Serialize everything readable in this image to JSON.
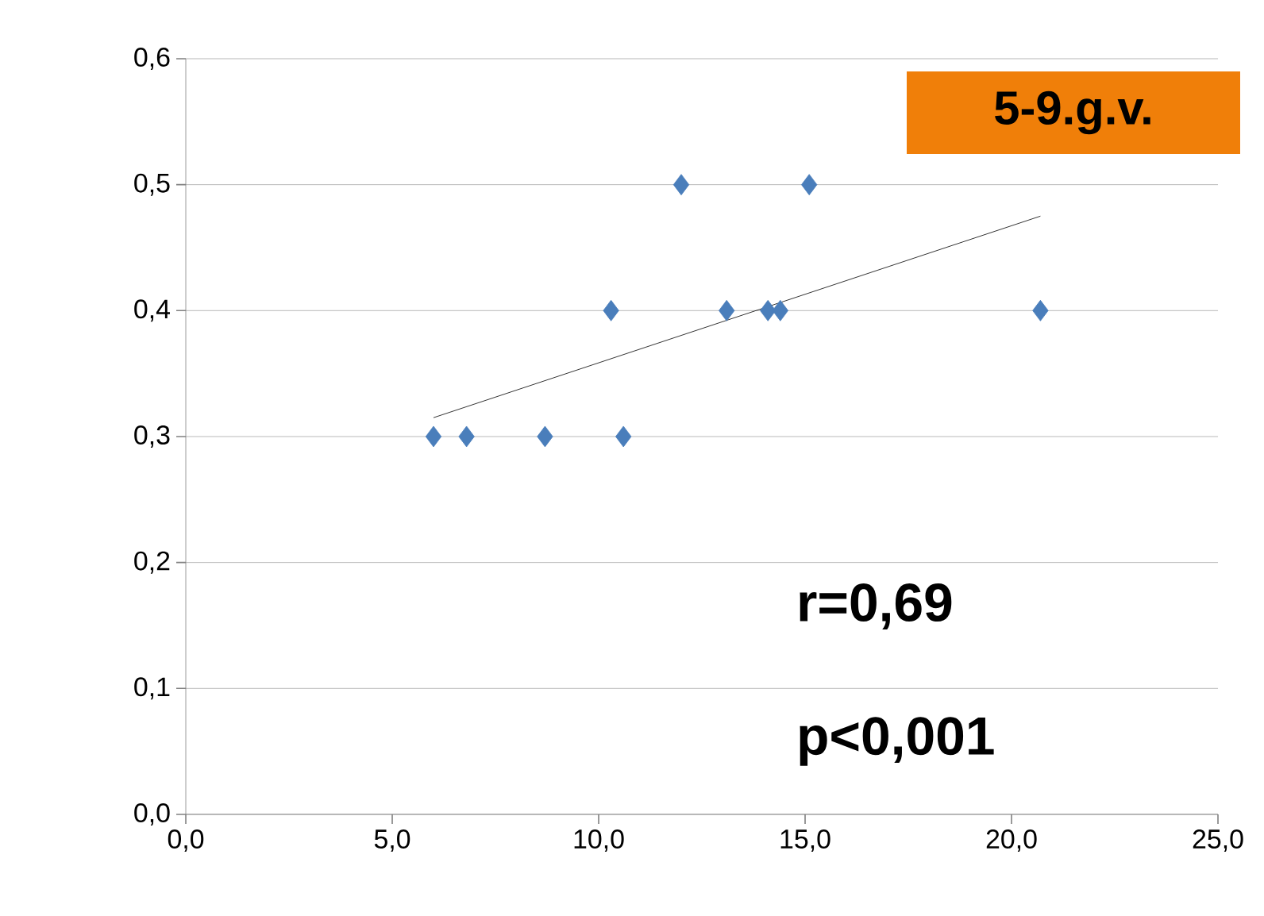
{
  "chart_data": {
    "type": "scatter",
    "series": [
      {
        "color": "#4a7ebb",
        "marker": "diamond",
        "x": [
          6.0,
          6.8,
          8.7,
          10.3,
          10.6,
          12.0,
          13.1,
          14.1,
          14.4,
          15.1,
          20.7
        ],
        "values": [
          0.3,
          0.3,
          0.3,
          0.4,
          0.3,
          0.5,
          0.4,
          0.4,
          0.4,
          0.5,
          0.4
        ]
      },
      {
        "type": "line",
        "color": "#000000",
        "marker": "none",
        "x": [
          6.0,
          20.7
        ],
        "values": [
          0.315,
          0.475
        ]
      }
    ],
    "xlim": [
      0,
      25
    ],
    "xticks": [
      {
        "value": 0,
        "label": "0,0"
      },
      {
        "value": 5,
        "label": "5,0"
      },
      {
        "value": 10,
        "label": "10,0"
      },
      {
        "value": 15,
        "label": "15,0"
      },
      {
        "value": 20,
        "label": "20,0"
      },
      {
        "value": 25,
        "label": "25,0"
      }
    ],
    "ylim": [
      0,
      0.6
    ],
    "yticks": [
      {
        "value": 0,
        "label": "0,0"
      },
      {
        "value": 0.1,
        "label": "0,1"
      },
      {
        "value": 0.2,
        "label": "0,2"
      },
      {
        "value": 0.3,
        "label": "0,3"
      },
      {
        "value": 0.4,
        "label": "0,4"
      },
      {
        "value": 0.5,
        "label": "0,5"
      },
      {
        "value": 0.6,
        "label": "0,6"
      }
    ],
    "grid": "y",
    "annotations": [
      "5-9.g.v.",
      "r=0,69",
      "p<0,001"
    ]
  }
}
